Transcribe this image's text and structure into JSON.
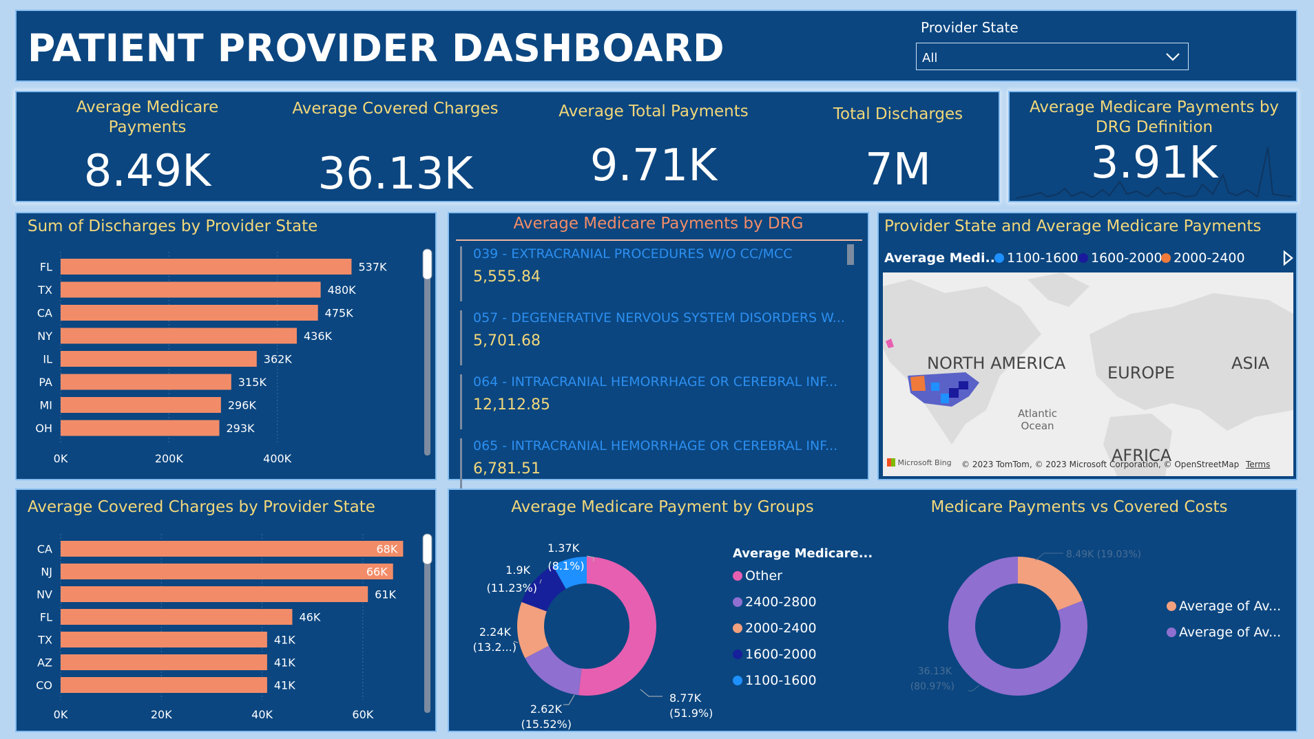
{
  "header": {
    "title": "PATIENT PROVIDER DASHBOARD",
    "slicer_label": "Provider State",
    "slicer_value": "All"
  },
  "kpis": [
    {
      "title": "Average Medicare Payments",
      "value": "8.49K"
    },
    {
      "title": "Average Covered Charges",
      "value": "36.13K"
    },
    {
      "title": "Average Total Payments",
      "value": "9.71K"
    },
    {
      "title": "Total Discharges",
      "value": "7M"
    },
    {
      "title": "Average Medicare Payments by DRG Definition",
      "value": "3.91K"
    }
  ],
  "discharges_panel": {
    "title": "Sum of Discharges by Provider State",
    "chart_data": {
      "type": "bar",
      "orientation": "horizontal",
      "categories": [
        "FL",
        "TX",
        "CA",
        "NY",
        "IL",
        "PA",
        "MI",
        "OH"
      ],
      "values": [
        537000,
        480000,
        475000,
        436000,
        362000,
        315000,
        296000,
        293000
      ],
      "labels": [
        "537K",
        "480K",
        "475K",
        "436K",
        "362K",
        "315K",
        "296K",
        "293K"
      ],
      "xticks": [
        "0K",
        "200K",
        "400K"
      ],
      "xlim": [
        0,
        600000
      ],
      "color": "#f28c68"
    }
  },
  "drg_panel": {
    "title": "Average Medicare Payments by DRG",
    "items": [
      {
        "code": "039 - EXTRACRANIAL PROCEDURES W/O CC/MCC",
        "value": "5,555.84"
      },
      {
        "code": "057 - DEGENERATIVE NERVOUS SYSTEM DISORDERS W...",
        "value": "5,701.68"
      },
      {
        "code": "064 - INTRACRANIAL HEMORRHAGE OR CEREBRAL INF...",
        "value": "12,112.85"
      },
      {
        "code": "065 - INTRACRANIAL HEMORRHAGE OR CEREBRAL INF...",
        "value": "6,781.51"
      }
    ]
  },
  "map_panel": {
    "title": "Provider State and Average Medicare Payments",
    "legend_title": "Average Medi...",
    "legend": [
      {
        "label": "1100-1600",
        "color": "#1e90ff"
      },
      {
        "label": "1600-2000",
        "color": "#1a1a9c"
      },
      {
        "label": "2000-2400",
        "color": "#f07a3a"
      }
    ],
    "labels": {
      "north_america": "NORTH AMERICA",
      "europe": "EUROPE",
      "asia": "ASIA",
      "africa": "AFRICA",
      "ocean_1": "Atlantic",
      "ocean_2": "Ocean"
    },
    "bing": "Microsoft Bing",
    "copyright": "© 2023 TomTom, © 2023 Microsoft Corporation, © OpenStreetMap",
    "terms": "Terms"
  },
  "covered_panel": {
    "title": "Average Covered Charges by Provider State",
    "chart_data": {
      "type": "bar",
      "orientation": "horizontal",
      "categories": [
        "CA",
        "NJ",
        "NV",
        "FL",
        "TX",
        "AZ",
        "CO"
      ],
      "values": [
        68000,
        66000,
        61000,
        46000,
        41000,
        41000,
        41000
      ],
      "labels": [
        "68K",
        "66K",
        "61K",
        "46K",
        "41K",
        "41K",
        "41K"
      ],
      "xticks": [
        "0K",
        "20K",
        "40K",
        "60K"
      ],
      "xlim": [
        0,
        70000
      ],
      "color": "#f28c68"
    }
  },
  "groups_panel": {
    "title": "Average Medicare Payment by Groups",
    "legend_title": "Average Medicare...",
    "legend": [
      {
        "label": "Other",
        "color": "#e75fb0"
      },
      {
        "label": "2400-2800",
        "color": "#8f6fd0"
      },
      {
        "label": "2000-2400",
        "color": "#f2a07e"
      },
      {
        "label": "1600-2000",
        "color": "#16209a"
      },
      {
        "label": "1100-1600",
        "color": "#1e90ff"
      }
    ],
    "chart_data": {
      "type": "pie",
      "donut": true,
      "slices": [
        {
          "name": "Other",
          "value": 8.77,
          "percent": 51.9,
          "label1": "8.77K",
          "label2": "(51.9%)",
          "color": "#e75fb0"
        },
        {
          "name": "2400-2800",
          "value": 2.62,
          "percent": 15.52,
          "label1": "2.62K",
          "label2": "(15.52%)",
          "color": "#8f6fd0"
        },
        {
          "name": "2000-2400",
          "value": 2.24,
          "percent": 13.2,
          "label1": "2.24K",
          "label2": "(13.2...)",
          "color": "#f2a07e"
        },
        {
          "name": "1600-2000",
          "value": 1.9,
          "percent": 11.23,
          "label1": "1.9K",
          "label2": "(11.23%)",
          "color": "#16209a"
        },
        {
          "name": "1100-1600",
          "value": 1.37,
          "percent": 8.1,
          "label1": "1.37K",
          "label2": "(8.1%)",
          "color": "#1e90ff"
        }
      ]
    }
  },
  "vs_panel": {
    "title": "Medicare Payments vs Covered Costs",
    "legend": [
      {
        "label": "Average of Av...",
        "color": "#f2a07e"
      },
      {
        "label": "Average of Av...",
        "color": "#8f6fd0"
      }
    ],
    "chart_data": {
      "type": "pie",
      "donut": true,
      "slices": [
        {
          "name": "Average of Av...",
          "value": 8.49,
          "percent": 19.03,
          "label": "8.49K (19.03%)",
          "color": "#f2a07e"
        },
        {
          "name": "Average of Av...",
          "value": 36.13,
          "percent": 80.97,
          "label1": "36.13K",
          "label2": "(80.97%)",
          "color": "#8f6fd0"
        }
      ]
    }
  }
}
